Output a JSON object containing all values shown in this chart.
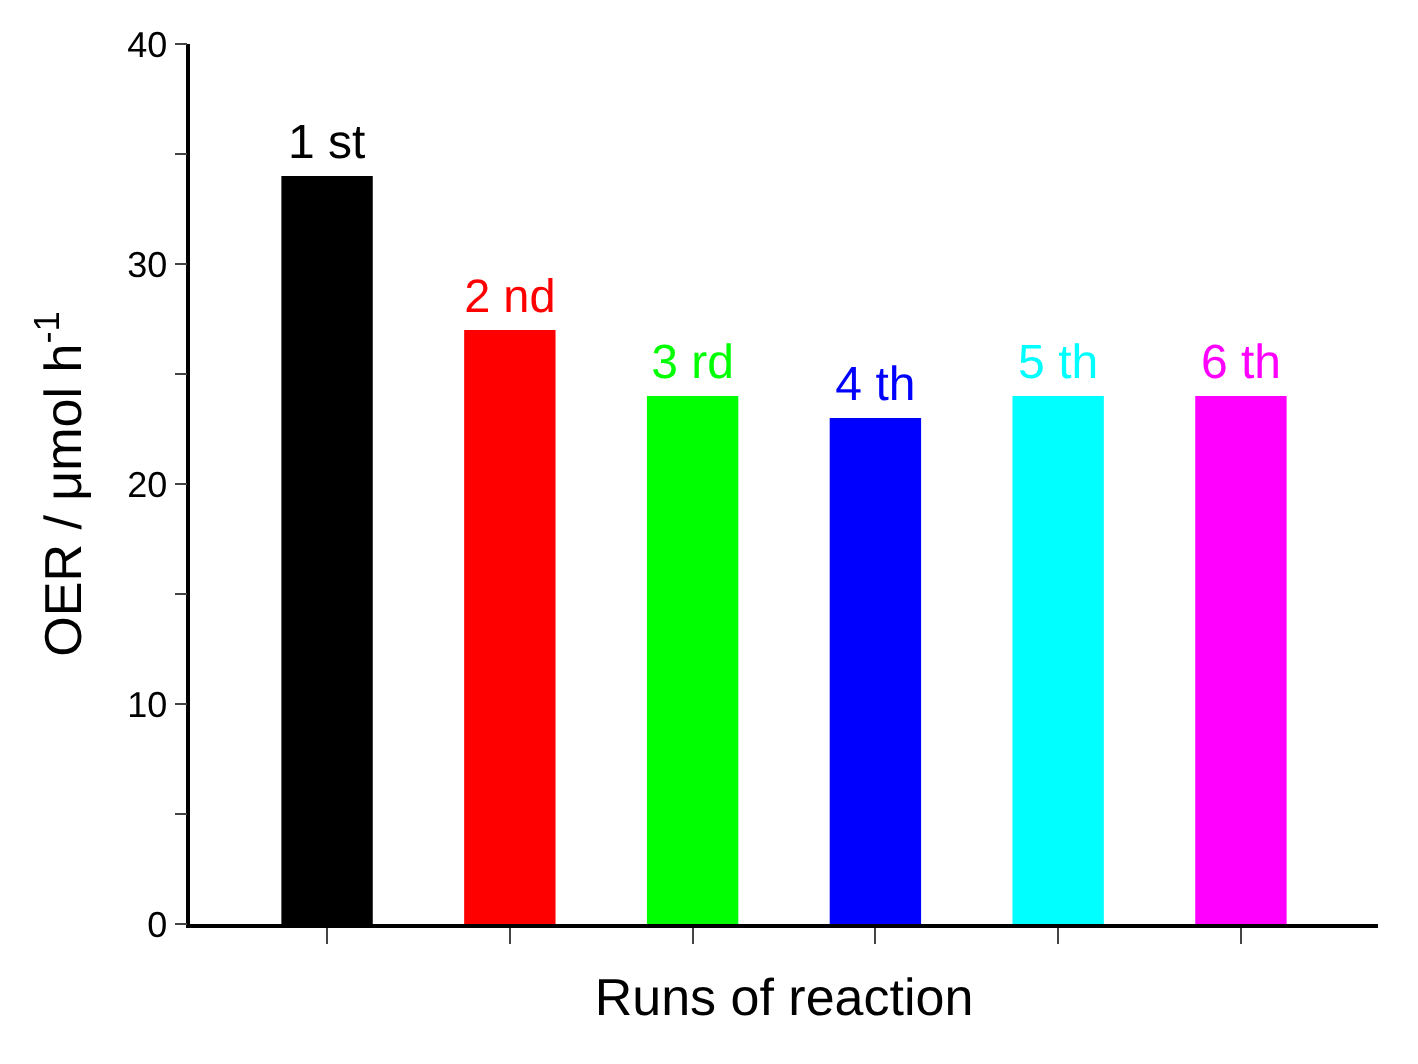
{
  "chart_data": {
    "type": "bar",
    "xlabel": "Runs of reaction",
    "ylabel": "OER / μmol h$^{-1}$",
    "categories": [
      "1 st",
      "2 nd",
      "3 rd",
      "4 th",
      "5 th",
      "6 th"
    ],
    "values": [
      34,
      27,
      24,
      23,
      24,
      24
    ],
    "colors": [
      "#000000",
      "#ff0000",
      "#00ff00",
      "#0000ff",
      "#00ffff",
      "#ff00ff"
    ],
    "ylim": [
      0,
      40
    ],
    "yticks": [
      0,
      {
        "value": 5,
        "label": null
      },
      10,
      {
        "value": 15,
        "label": null
      },
      20,
      {
        "value": 25,
        "label": null
      },
      30,
      {
        "value": 35,
        "label": null
      },
      40
    ],
    "tick_labels": "y",
    "legend": false
  }
}
